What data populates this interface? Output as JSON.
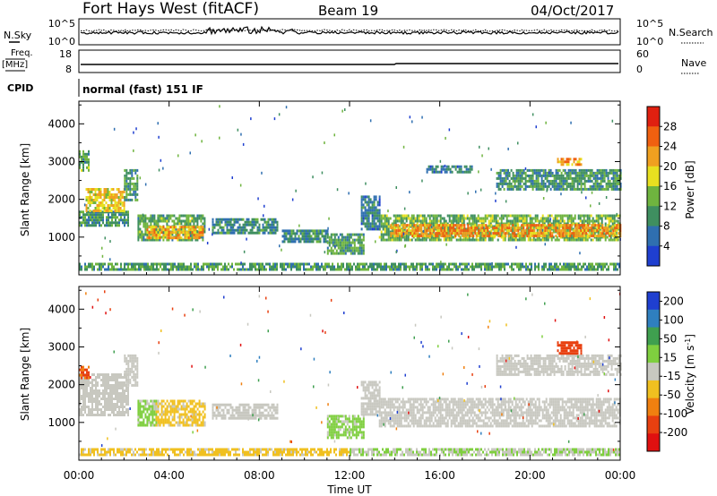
{
  "header": {
    "station": "Fort Hays West (fitACF)",
    "beam": "Beam 19",
    "date": "04/Oct/2017"
  },
  "summary": {
    "nsky_label": "N.Sky",
    "nsky_ticks": [
      "10^5",
      "10^0"
    ],
    "nsearch_label": "N.Search",
    "nsearch_ticks": [
      "10^5",
      "10^0"
    ],
    "freq_label": "Freq.",
    "freq_unit": "[MHz]",
    "freq_ticks": [
      "18",
      "8"
    ],
    "nave_label": "Nave",
    "nave_ticks": [
      "60",
      "0"
    ],
    "cpid_label": "CPID",
    "cpid_text": "normal (fast) 151 IF"
  },
  "colors": {
    "power": [
      "#1f3fd0",
      "#2f6fb0",
      "#3f8f60",
      "#6fb43f",
      "#e8e020",
      "#f0a020",
      "#f06010",
      "#e02010"
    ],
    "velocity": [
      "#1f3fd0",
      "#2f7fbf",
      "#3f9f4f",
      "#7fcf3f",
      "#c8c8c0",
      "#f0c020",
      "#f08010",
      "#e84010",
      "#e01010"
    ]
  },
  "chart_data": [
    {
      "type": "heatmap",
      "name": "power",
      "ylabel": "Slant Range [km]",
      "yticks": [
        "1000",
        "2000",
        "3000",
        "4000"
      ],
      "ylim": [
        0,
        4600
      ],
      "xlim": [
        0,
        24
      ],
      "colorbar_label": "Power [dB]",
      "colorbar_ticks": [
        "4",
        "8",
        "12",
        "16",
        "20",
        "24",
        "28"
      ],
      "colorbar_range": [
        0,
        32
      ],
      "bands": [
        {
          "t0": 0.0,
          "t1": 2.2,
          "r0": 1300,
          "r1": 1700,
          "v": 10
        },
        {
          "t0": 0.3,
          "t1": 2.0,
          "r0": 1700,
          "r1": 2300,
          "v": 19
        },
        {
          "t0": 2.0,
          "t1": 2.6,
          "r0": 2000,
          "r1": 2800,
          "v": 11
        },
        {
          "t0": 0.0,
          "t1": 0.4,
          "r0": 2800,
          "r1": 3300,
          "v": 12
        },
        {
          "t0": 2.6,
          "t1": 5.6,
          "r0": 900,
          "r1": 1600,
          "v": 12
        },
        {
          "t0": 3.0,
          "t1": 5.5,
          "r0": 1000,
          "r1": 1300,
          "v": 21
        },
        {
          "t0": 5.9,
          "t1": 8.8,
          "r0": 1100,
          "r1": 1500,
          "v": 9
        },
        {
          "t0": 9.0,
          "t1": 11.0,
          "r0": 900,
          "r1": 1200,
          "v": 9
        },
        {
          "t0": 11.0,
          "t1": 12.6,
          "r0": 600,
          "r1": 1100,
          "v": 11
        },
        {
          "t0": 12.5,
          "t1": 13.3,
          "r0": 1200,
          "r1": 2100,
          "v": 8
        },
        {
          "t0": 13.3,
          "t1": 24.0,
          "r0": 900,
          "r1": 1600,
          "v": 13
        },
        {
          "t0": 13.8,
          "t1": 24.0,
          "r0": 1050,
          "r1": 1350,
          "v": 23
        },
        {
          "t0": 15.4,
          "t1": 17.4,
          "r0": 2700,
          "r1": 2900,
          "v": 8
        },
        {
          "t0": 18.5,
          "t1": 24.0,
          "r0": 2300,
          "r1": 2800,
          "v": 10
        },
        {
          "t0": 21.2,
          "t1": 22.3,
          "r0": 2900,
          "r1": 3100,
          "v": 22
        },
        {
          "t0": 0.0,
          "t1": 24.0,
          "r0": 150,
          "r1": 320,
          "v": 11
        }
      ]
    },
    {
      "type": "heatmap",
      "name": "velocity",
      "ylabel": "Slant Range [km]",
      "yticks": [
        "1000",
        "2000",
        "3000",
        "4000"
      ],
      "ylim": [
        0,
        4600
      ],
      "xlim": [
        0,
        24
      ],
      "xlabel": "Time UT",
      "xticks": [
        "00:00",
        "04:00",
        "08:00",
        "12:00",
        "16:00",
        "20:00",
        "00:00"
      ],
      "colorbar_label": "Velocity [m s^-1]",
      "colorbar_ticks": [
        "200",
        "100",
        "50",
        "15",
        "-15",
        "-50",
        "-100",
        "-200"
      ],
      "colorbar_range": [
        -250,
        250
      ],
      "bands": [
        {
          "t0": 0.0,
          "t1": 2.2,
          "r0": 1200,
          "r1": 2300,
          "v": 0
        },
        {
          "t0": 2.0,
          "t1": 2.6,
          "r0": 2000,
          "r1": 2800,
          "v": 0
        },
        {
          "t0": 0.0,
          "t1": 0.4,
          "r0": 2200,
          "r1": 2500,
          "v": -150
        },
        {
          "t0": 2.6,
          "t1": 3.4,
          "r0": 900,
          "r1": 1600,
          "v": 40
        },
        {
          "t0": 3.4,
          "t1": 5.6,
          "r0": 950,
          "r1": 1600,
          "v": -40
        },
        {
          "t0": 5.9,
          "t1": 8.8,
          "r0": 1100,
          "r1": 1500,
          "v": 0
        },
        {
          "t0": 11.0,
          "t1": 12.6,
          "r0": 600,
          "r1": 1200,
          "v": 40
        },
        {
          "t0": 12.5,
          "t1": 13.3,
          "r0": 1200,
          "r1": 2100,
          "v": 0
        },
        {
          "t0": 13.3,
          "t1": 24.0,
          "r0": 900,
          "r1": 1650,
          "v": 0
        },
        {
          "t0": 18.5,
          "t1": 24.0,
          "r0": 2300,
          "r1": 2800,
          "v": 0
        },
        {
          "t0": 21.2,
          "t1": 22.3,
          "r0": 2850,
          "r1": 3150,
          "v": -170
        },
        {
          "t0": 0.0,
          "t1": 12.0,
          "r0": 150,
          "r1": 320,
          "v": -40
        },
        {
          "t0": 12.0,
          "t1": 24.0,
          "r0": 150,
          "r1": 320,
          "v": 25
        }
      ]
    }
  ]
}
